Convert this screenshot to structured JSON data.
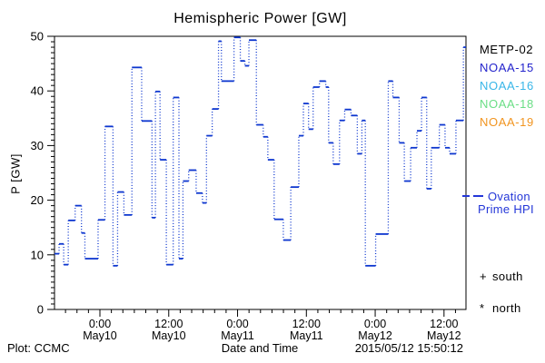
{
  "title": "Hemispheric Power [GW]",
  "y_axis": {
    "label": "P [GW]",
    "ticks": [
      0,
      10,
      20,
      30,
      40,
      50
    ]
  },
  "x_axis": {
    "label": "Date and Time",
    "tick_labels": [
      [
        "0:00",
        "May10"
      ],
      [
        "12:00",
        "May10"
      ],
      [
        "0:00",
        "May11"
      ],
      [
        "12:00",
        "May11"
      ],
      [
        "0:00",
        "May12"
      ],
      [
        "12:00",
        "May12"
      ]
    ]
  },
  "legend": {
    "satellites": [
      {
        "label": "METP-02",
        "color": "#000000"
      },
      {
        "label": "NOAA-15",
        "color": "#2323cc"
      },
      {
        "label": "NOAA-16",
        "color": "#38b6e8"
      },
      {
        "label": "NOAA-18",
        "color": "#6ade85"
      },
      {
        "label": "NOAA-19",
        "color": "#f1941f"
      }
    ],
    "line": {
      "label_line1": "Ovation",
      "label_line2": "Prime HPI",
      "color": "#2437d8"
    },
    "markers": [
      {
        "symbol": "+",
        "label": "south"
      },
      {
        "symbol": "*",
        "label": "north"
      }
    ]
  },
  "footer": {
    "left": "Plot: CCMC",
    "right": "2015/05/12 15:50:12"
  },
  "chart_data": {
    "type": "line",
    "title": "Hemispheric Power [GW]",
    "xlabel": "Date and Time",
    "ylabel": "P [GW]",
    "ylim": [
      0,
      50
    ],
    "y_major_step": 10,
    "y_minor_step": 1,
    "x_start": "2015-05-09 ~16:00 UT",
    "x_end": "2015-05-12 ~15:45 UT",
    "x_hours_total": 71.75,
    "x_major_tick_hours": [
      7.92,
      19.92,
      31.92,
      43.92,
      55.92,
      67.92
    ],
    "x_minor_step_hours": 2,
    "grid": false,
    "legend_position": "right",
    "line_color": "#0d36cf",
    "series": [
      {
        "name": "Ovation Prime HPI",
        "style": "steps-post",
        "units": "GW",
        "points": [
          [
            0.0,
            10.2
          ],
          [
            0.8,
            12.0
          ],
          [
            1.6,
            8.2
          ],
          [
            2.4,
            16.3
          ],
          [
            3.6,
            19.0
          ],
          [
            4.7,
            14.0
          ],
          [
            5.3,
            9.3
          ],
          [
            7.6,
            16.4
          ],
          [
            8.8,
            33.5
          ],
          [
            10.2,
            8.0
          ],
          [
            11.0,
            21.5
          ],
          [
            12.1,
            17.3
          ],
          [
            13.5,
            44.3
          ],
          [
            15.2,
            34.5
          ],
          [
            17.0,
            16.8
          ],
          [
            17.6,
            39.9
          ],
          [
            18.4,
            27.4
          ],
          [
            19.5,
            8.2
          ],
          [
            20.7,
            38.8
          ],
          [
            21.7,
            9.3
          ],
          [
            22.4,
            23.5
          ],
          [
            23.4,
            25.5
          ],
          [
            24.7,
            21.3
          ],
          [
            25.8,
            19.5
          ],
          [
            26.5,
            31.8
          ],
          [
            27.5,
            36.7
          ],
          [
            28.6,
            49.1
          ],
          [
            29.1,
            41.8
          ],
          [
            31.3,
            49.8
          ],
          [
            32.4,
            45.5
          ],
          [
            33.2,
            44.6
          ],
          [
            33.9,
            49.3
          ],
          [
            35.2,
            33.8
          ],
          [
            36.4,
            31.6
          ],
          [
            37.2,
            27.4
          ],
          [
            38.3,
            16.5
          ],
          [
            39.9,
            12.7
          ],
          [
            41.2,
            22.4
          ],
          [
            42.6,
            31.8
          ],
          [
            43.4,
            37.7
          ],
          [
            44.3,
            33.0
          ],
          [
            45.1,
            40.7
          ],
          [
            46.2,
            41.8
          ],
          [
            47.3,
            40.7
          ],
          [
            47.8,
            30.5
          ],
          [
            48.6,
            26.6
          ],
          [
            49.7,
            34.6
          ],
          [
            50.6,
            36.6
          ],
          [
            51.7,
            35.5
          ],
          [
            52.8,
            28.5
          ],
          [
            53.6,
            34.6
          ],
          [
            54.2,
            8.0
          ],
          [
            56.0,
            13.8
          ],
          [
            58.2,
            41.8
          ],
          [
            59.0,
            38.8
          ],
          [
            60.1,
            30.5
          ],
          [
            61.0,
            23.5
          ],
          [
            62.1,
            29.6
          ],
          [
            63.2,
            32.7
          ],
          [
            64.0,
            38.8
          ],
          [
            64.9,
            22.1
          ],
          [
            65.7,
            29.6
          ],
          [
            67.1,
            33.8
          ],
          [
            68.1,
            29.6
          ],
          [
            68.9,
            28.5
          ],
          [
            70.0,
            34.6
          ],
          [
            71.3,
            48.0
          ]
        ]
      }
    ]
  }
}
